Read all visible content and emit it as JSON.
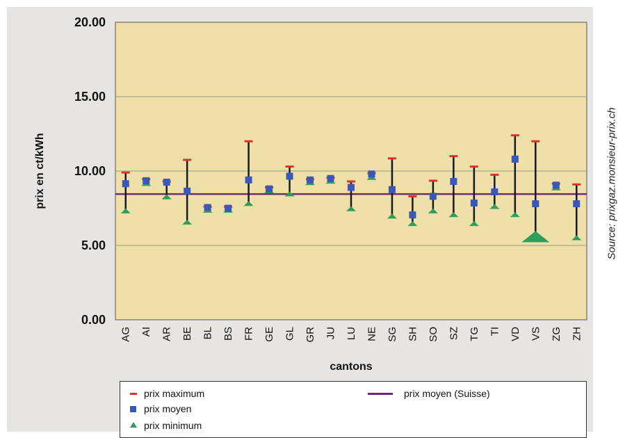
{
  "chart_data": {
    "type": "scatter",
    "title": "",
    "xlabel": "cantons",
    "ylabel": "prix en ct/kWh",
    "ylim": [
      0,
      20
    ],
    "yticks": [
      "0.00",
      "5.00",
      "10.00",
      "15.00",
      "20.00"
    ],
    "grid": "horizontal",
    "plot_background": "#eee0a8",
    "categories": [
      "AG",
      "AI",
      "AR",
      "BE",
      "BL",
      "BS",
      "FR",
      "GE",
      "GL",
      "GR",
      "JU",
      "LU",
      "NE",
      "SG",
      "SH",
      "SO",
      "SZ",
      "TG",
      "TI",
      "VD",
      "VS",
      "ZG",
      "ZH"
    ],
    "series": [
      {
        "name": "prix maximum",
        "color": "#d9342b",
        "marker": "dash",
        "values": [
          9.9,
          9.45,
          9.3,
          10.75,
          7.6,
          7.6,
          12.0,
          8.9,
          10.3,
          9.45,
          9.55,
          9.3,
          9.85,
          10.85,
          8.3,
          9.35,
          11.0,
          10.3,
          9.75,
          12.4,
          12.0,
          9.15,
          9.1
        ]
      },
      {
        "name": "prix moyen",
        "color": "#3a58b8",
        "marker": "square",
        "values": [
          9.15,
          9.35,
          9.25,
          8.65,
          7.55,
          7.5,
          9.4,
          8.8,
          9.65,
          9.4,
          9.5,
          8.9,
          9.8,
          8.75,
          7.05,
          8.3,
          9.3,
          7.85,
          8.6,
          10.8,
          7.8,
          9.05,
          7.8
        ]
      },
      {
        "name": "prix minimum",
        "color": "#2f9e5a",
        "marker": "triangle",
        "values": [
          7.3,
          9.15,
          8.25,
          6.55,
          7.35,
          7.35,
          7.8,
          8.65,
          8.45,
          9.2,
          9.3,
          7.45,
          9.55,
          6.95,
          6.45,
          7.3,
          7.05,
          6.45,
          7.6,
          7.05,
          5.55,
          8.85,
          5.5
        ]
      },
      {
        "name": "prix moyen (Suisse)",
        "color": "#6b2a7a",
        "marker": "line",
        "value": 8.45
      }
    ],
    "legend": {
      "position": "bottom",
      "items": [
        "prix maximum",
        "prix moyen",
        "prix minimum",
        "prix moyen (Suisse)"
      ]
    }
  },
  "source": "Source: prixgaz.monsieur-prix.ch"
}
